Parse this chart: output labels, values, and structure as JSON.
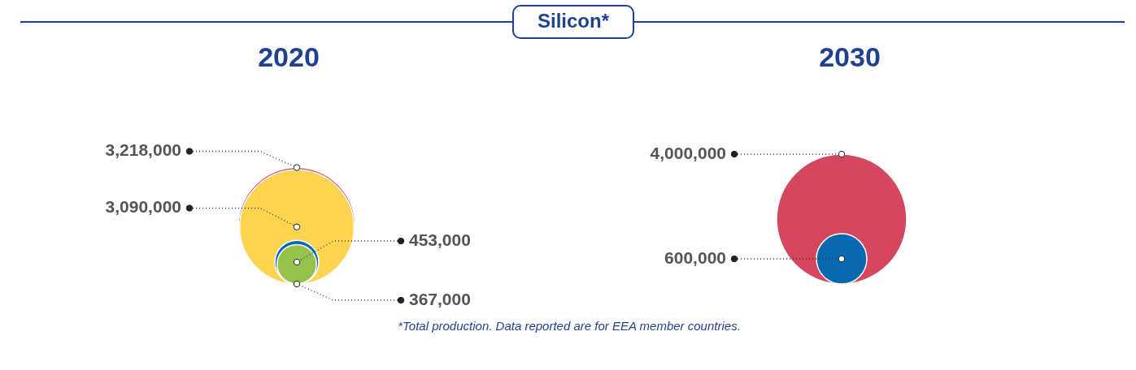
{
  "chart_data": [
    {
      "type": "other",
      "title": "2020",
      "annotations": [
        "Silicon*",
        "*Total production. Data reported are for EEA member countries."
      ],
      "values": [
        3218000,
        3090000,
        453000,
        367000
      ],
      "colors": [
        "#d4475f",
        "#fdd44f",
        "#0868b0",
        "#96c14a"
      ],
      "value_labels": [
        "3,218,000",
        "3,090,000",
        "453,000",
        "367,000"
      ]
    },
    {
      "type": "other",
      "title": "2030",
      "values": [
        4000000,
        600000
      ],
      "colors": [
        "#d4475f",
        "#0868b0"
      ],
      "value_labels": [
        "4,000,000",
        "600,000"
      ]
    }
  ]
}
